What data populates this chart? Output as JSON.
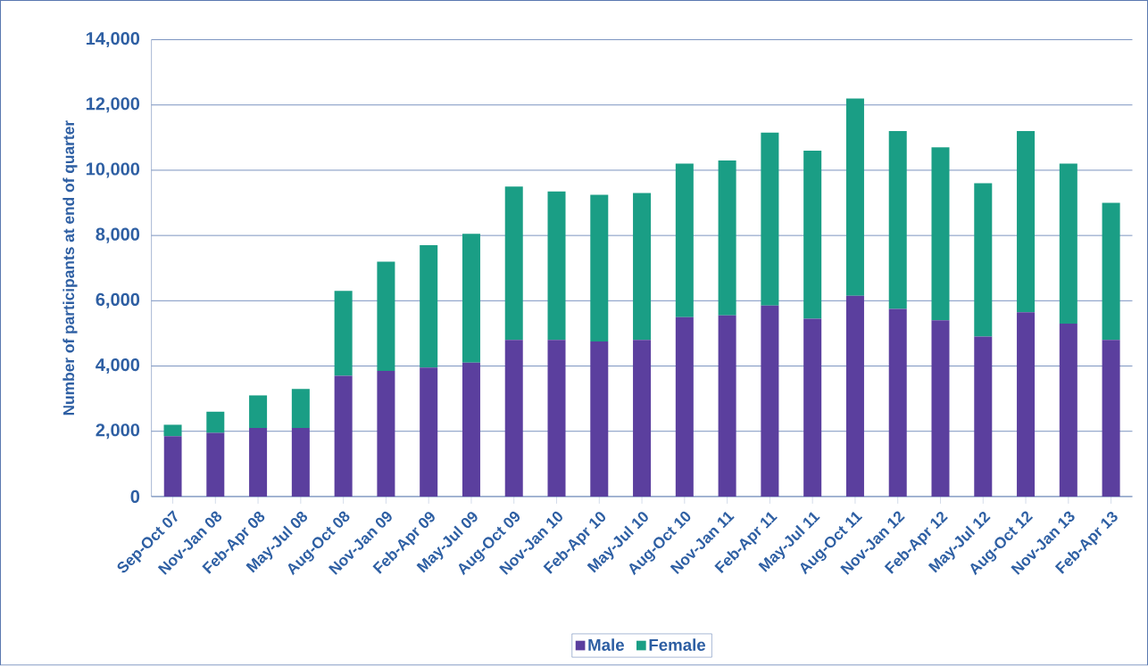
{
  "chart_data": {
    "type": "bar",
    "stacked": true,
    "ylabel": "Number of participants at end of quarter",
    "categories": [
      "Sep-Oct 07",
      "Nov-Jan 08",
      "Feb-Apr 08",
      "May-Jul 08",
      "Aug-Oct 08",
      "Nov-Jan 09",
      "Feb-Apr 09",
      "May-Jul 09",
      "Aug-Oct 09",
      "Nov-Jan 10",
      "Feb-Apr 10",
      "May-Jul 10",
      "Aug-Oct 10",
      "Nov-Jan 11",
      "Feb-Apr 11",
      "May-Jul 11",
      "Aug-Oct 11",
      "Nov-Jan 12",
      "Feb-Apr 12",
      "May-Jul 12",
      "Aug-Oct 12",
      "Nov-Jan 13",
      "Feb-Apr 13"
    ],
    "series": [
      {
        "name": "Male",
        "color": "#5b3f9e",
        "values": [
          1850,
          1950,
          2100,
          2100,
          3700,
          3850,
          3950,
          4100,
          4800,
          4800,
          4750,
          4800,
          5500,
          5550,
          5850,
          5450,
          6150,
          5750,
          5400,
          4900,
          5650,
          5300,
          4800
        ]
      },
      {
        "name": "Female",
        "color": "#1a9e85",
        "values": [
          350,
          650,
          1000,
          1200,
          2600,
          3350,
          3750,
          3950,
          4700,
          4550,
          4500,
          4500,
          4700,
          4750,
          5300,
          5150,
          6050,
          5450,
          5300,
          4700,
          5550,
          4900,
          4200
        ]
      }
    ],
    "ylim": [
      0,
      14000
    ],
    "yticks": [
      {
        "value": 0,
        "label": "0"
      },
      {
        "value": 2000,
        "label": "2,000"
      },
      {
        "value": 4000,
        "label": "4,000"
      },
      {
        "value": 6000,
        "label": "6,000"
      },
      {
        "value": 8000,
        "label": "8,000"
      },
      {
        "value": 10000,
        "label": "10,000"
      },
      {
        "value": 12000,
        "label": "12,000"
      },
      {
        "value": 14000,
        "label": "14,000"
      }
    ],
    "grid": "y",
    "legend": "bottom"
  }
}
